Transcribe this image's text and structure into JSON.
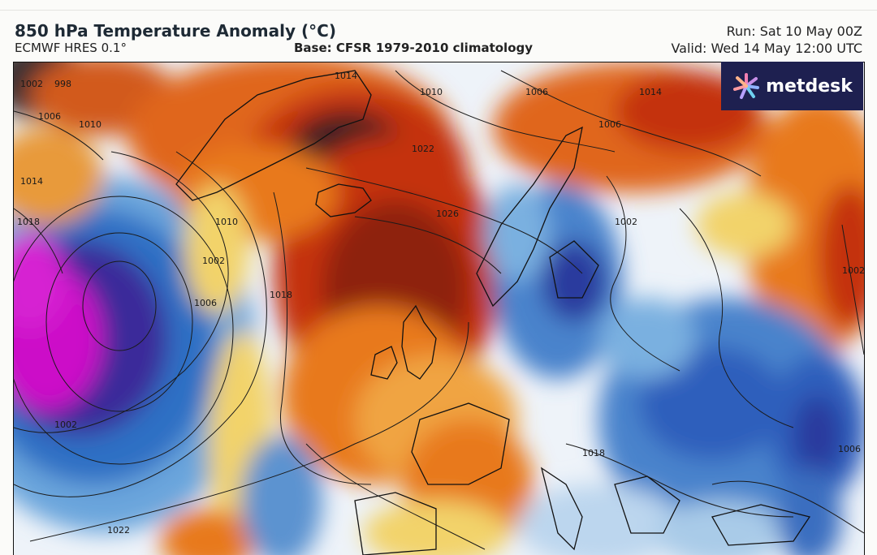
{
  "header": {
    "title": "850 hPa Temperature Anomaly (°C)",
    "model": "ECMWF HRES 0.1°",
    "base": "Base: CFSR 1979-2010 climatology",
    "run": "Run: Sat 10 May 00Z",
    "valid": "Valid: Wed 14 May 12:00 UTC"
  },
  "logo": {
    "text": "metdesk",
    "icon": "starburst-logo-icon",
    "background": "#1e2050"
  },
  "colors": {
    "deep_purple": "#3a1a78",
    "magenta": "#cc10c8",
    "blue": "#2f6fc4",
    "light_blue": "#a9cbe8",
    "white": "#f3f6fb",
    "yellow": "#f2d36a",
    "orange": "#e8791e",
    "red": "#c4320e",
    "dark_red": "#7e1a10",
    "grey_brown": "#4a3a3a"
  },
  "isobar_labels": [
    "1002",
    "998",
    "1006",
    "1010",
    "1014",
    "1018",
    "1022",
    "1026",
    "1002",
    "1010",
    "1006",
    "1018",
    "1014",
    "1002",
    "1022",
    "1010",
    "1006",
    "1002",
    "1014",
    "1006",
    "1002",
    "1006",
    "1018"
  ]
}
